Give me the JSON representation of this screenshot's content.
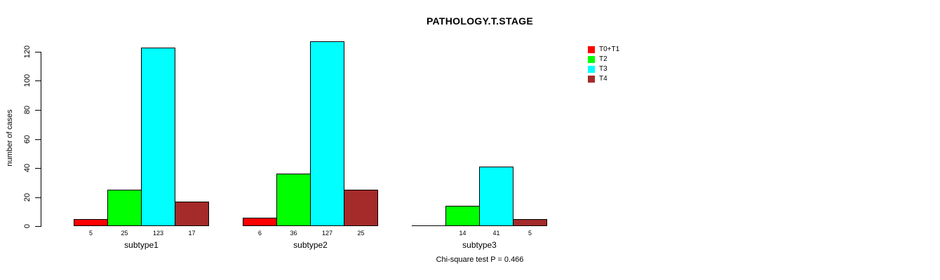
{
  "title": "PATHOLOGY.T.STAGE",
  "footer": "Chi-square test P = 0.466",
  "y_axis": {
    "label": "number of cases",
    "tick_labels": [
      "0",
      "20",
      "40",
      "60",
      "80",
      "100",
      "120"
    ]
  },
  "legend": {
    "items": [
      {
        "label": "T0+T1",
        "color": "#FF0000"
      },
      {
        "label": "T2",
        "color": "#00FF00"
      },
      {
        "label": "T3",
        "color": "#00FFFF"
      },
      {
        "label": "T4",
        "color": "#A52A2A"
      }
    ]
  },
  "chart_data": {
    "type": "bar",
    "title": "PATHOLOGY.T.STAGE",
    "xlabel": "",
    "ylabel": "number of cases",
    "ylim": [
      0,
      120
    ],
    "yticks": [
      0,
      20,
      40,
      60,
      80,
      100,
      120
    ],
    "grid": false,
    "legend_position": "right",
    "categories": [
      "subtype1",
      "subtype2",
      "subtype3"
    ],
    "series": [
      {
        "name": "T0+T1",
        "color": "#FF0000",
        "values": [
          5,
          6,
          0
        ]
      },
      {
        "name": "T2",
        "color": "#00FF00",
        "values": [
          25,
          36,
          14
        ]
      },
      {
        "name": "T3",
        "color": "#00FFFF",
        "values": [
          123,
          127,
          41
        ]
      },
      {
        "name": "T4",
        "color": "#A52A2A",
        "values": [
          17,
          25,
          5
        ]
      }
    ],
    "bar_value_labels": [
      [
        "5",
        "25",
        "123",
        "17"
      ],
      [
        "6",
        "36",
        "127",
        "25"
      ],
      [
        "",
        "14",
        "41",
        "5"
      ]
    ],
    "annotation": "Chi-square test P = 0.466"
  }
}
